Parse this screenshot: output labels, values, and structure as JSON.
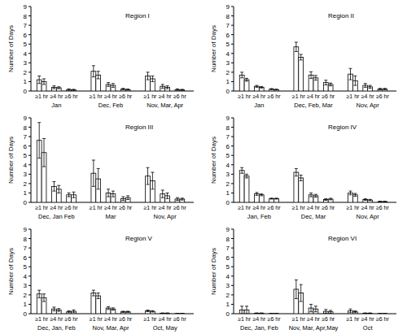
{
  "chart_data": [
    {
      "type": "bar",
      "title": "Region I",
      "y_label": "Number of Days",
      "ylim": [
        0,
        9
      ],
      "yticks": [
        0,
        1,
        2,
        3,
        4,
        5,
        6,
        7,
        8,
        9
      ],
      "categories": [
        "≥1 hr",
        "≥4 hr",
        "≥6 hr",
        "≥1 hr",
        "≥4 hr",
        "≥6 hr",
        "≥1 hr",
        "≥4 hr",
        "≥6 hr"
      ],
      "groups": [
        "Jan",
        "Dec, Feb",
        "Nov, Mar, Apr"
      ],
      "series": [
        {
          "color": "#ffffff",
          "values": [
            1.2,
            0.4,
            0.15,
            2.1,
            0.7,
            0.2,
            1.6,
            0.5,
            0.15
          ],
          "errors": [
            0.4,
            0.15,
            0.08,
            0.6,
            0.2,
            0.08,
            0.4,
            0.2,
            0.08
          ]
        },
        {
          "color": "#ffffff",
          "values": [
            1.0,
            0.35,
            0.12,
            1.7,
            0.6,
            0.15,
            1.3,
            0.4,
            0.12
          ],
          "errors": [
            0.3,
            0.1,
            0.06,
            0.4,
            0.2,
            0.06,
            0.3,
            0.15,
            0.06
          ]
        }
      ]
    },
    {
      "type": "bar",
      "title": "Region II",
      "y_label": "Number of Days",
      "ylim": [
        0,
        9
      ],
      "yticks": [
        0,
        1,
        2,
        3,
        4,
        5,
        6,
        7,
        8,
        9
      ],
      "categories": [
        "≥1 hr",
        "≥4 hr",
        "≥6 hr",
        "≥1 hr",
        "≥4 hr",
        "≥6 hr",
        "≥1 hr",
        "≥4 hr",
        "≥6 hr"
      ],
      "groups": [
        "Jan",
        "Dec, Feb, Mar",
        "Nov, Apr"
      ],
      "series": [
        {
          "color": "#ffffff",
          "values": [
            1.7,
            0.5,
            0.2,
            4.7,
            1.7,
            0.9,
            1.8,
            0.6,
            0.2
          ],
          "errors": [
            0.3,
            0.1,
            0.06,
            0.5,
            0.35,
            0.25,
            0.6,
            0.2,
            0.08
          ]
        },
        {
          "color": "#ffffff",
          "values": [
            1.2,
            0.4,
            0.15,
            3.6,
            1.4,
            0.7,
            1.1,
            0.45,
            0.2
          ],
          "errors": [
            0.15,
            0.08,
            0.05,
            0.3,
            0.25,
            0.15,
            0.5,
            0.15,
            0.08
          ]
        }
      ]
    },
    {
      "type": "bar",
      "title": "Region III",
      "y_label": "Number of Days",
      "ylim": [
        0,
        9
      ],
      "yticks": [
        0,
        1,
        2,
        3,
        4,
        5,
        6,
        7,
        8,
        9
      ],
      "categories": [
        "≥1 hr",
        "≥4 hr",
        "≥6 hr",
        "≥1 hr",
        "≥4 hr",
        "≥6 hr",
        "≥1 hr",
        "≥4 hr",
        "≥6 hr"
      ],
      "groups": [
        "Dec, Jan Feb",
        "Mar",
        "Nov, Apr"
      ],
      "series": [
        {
          "color": "#ffffff",
          "values": [
            6.6,
            1.7,
            0.8,
            3.1,
            1.0,
            0.4,
            2.8,
            0.9,
            0.35
          ],
          "errors": [
            1.9,
            0.5,
            0.2,
            1.4,
            0.4,
            0.2,
            0.9,
            0.4,
            0.15
          ]
        },
        {
          "color": "#ffffff",
          "values": [
            5.3,
            1.4,
            0.8,
            2.5,
            0.9,
            0.5,
            2.3,
            0.7,
            0.35
          ],
          "errors": [
            1.5,
            0.4,
            0.3,
            1.1,
            0.3,
            0.2,
            0.9,
            0.3,
            0.1
          ]
        }
      ]
    },
    {
      "type": "bar",
      "title": "Region IV",
      "y_label": "Number of Days",
      "ylim": [
        0,
        9
      ],
      "yticks": [
        0,
        1,
        2,
        3,
        4,
        5,
        6,
        7,
        8,
        9
      ],
      "categories": [
        "≥1 hr",
        "≥4 hr",
        "≥6 hr",
        "≥1 hr",
        "≥4 hr",
        "≥6 hr",
        "≥1 hr",
        "≥4 hr",
        "≥6 hr"
      ],
      "groups": [
        "Jan, Feb",
        "Dec, Mar",
        "Nov, Apr"
      ],
      "series": [
        {
          "color": "#ffffff",
          "values": [
            3.4,
            0.9,
            0.4,
            3.2,
            0.8,
            0.3,
            1.0,
            0.3,
            0.08
          ],
          "errors": [
            0.3,
            0.15,
            0.05,
            0.4,
            0.2,
            0.08,
            0.2,
            0.08,
            0.03
          ]
        },
        {
          "color": "#ffffff",
          "values": [
            2.8,
            0.8,
            0.4,
            2.6,
            0.7,
            0.35,
            0.8,
            0.25,
            0.08
          ],
          "errors": [
            0.2,
            0.1,
            0.05,
            0.3,
            0.15,
            0.08,
            0.15,
            0.07,
            0.03
          ]
        }
      ]
    },
    {
      "type": "bar",
      "title": "Region V",
      "y_label": "Number of Days",
      "ylim": [
        0,
        9
      ],
      "yticks": [
        0,
        1,
        2,
        3,
        4,
        5,
        6,
        7,
        8,
        9
      ],
      "categories": [
        "≥1 hr",
        "≥4 hr",
        "≥6 hr",
        "≥1 hr",
        "≥4 hr",
        "≥6 hr",
        "≥1 hr",
        "≥4 hr",
        "≥6 hr"
      ],
      "groups": [
        "Dec, Jan, Feb",
        "Nov, Mar, Apr",
        "Oct, May"
      ],
      "series": [
        {
          "color": "#ffffff",
          "values": [
            2.1,
            0.5,
            0.2,
            2.2,
            0.6,
            0.2,
            0.3,
            0.05,
            0.02
          ],
          "errors": [
            0.4,
            0.2,
            0.1,
            0.3,
            0.15,
            0.06,
            0.08,
            0.03,
            0.01
          ]
        },
        {
          "color": "#ffffff",
          "values": [
            1.7,
            0.4,
            0.25,
            1.9,
            0.5,
            0.2,
            0.25,
            0.05,
            0.02
          ],
          "errors": [
            0.4,
            0.15,
            0.15,
            0.3,
            0.12,
            0.06,
            0.07,
            0.03,
            0.01
          ]
        }
      ]
    },
    {
      "type": "bar",
      "title": "Region VI",
      "y_label": "Number of Days",
      "ylim": [
        0,
        9
      ],
      "yticks": [
        0,
        1,
        2,
        3,
        4,
        5,
        6,
        7,
        8,
        9
      ],
      "categories": [
        "≥1 hr",
        "≥4 hr",
        "≥6 hr",
        "≥1 hr",
        "≥4 hr",
        "≥6 hr",
        "≥1 hr",
        "≥4 hr",
        "≥6 hr"
      ],
      "groups": [
        "Dec, Jan, Feb",
        "Nov, Mar, Apr,May",
        "Oct"
      ],
      "series": [
        {
          "color": "#ffffff",
          "values": [
            0.4,
            0.05,
            0.02,
            2.6,
            0.6,
            0.25,
            0.3,
            0.05,
            0.02
          ],
          "errors": [
            0.4,
            0.03,
            0.01,
            1.0,
            0.4,
            0.2,
            0.2,
            0.03,
            0.01
          ]
        },
        {
          "color": "#ffffff",
          "values": [
            0.4,
            0.05,
            0.02,
            2.2,
            0.5,
            0.2,
            0.2,
            0.05,
            0.02
          ],
          "errors": [
            0.4,
            0.03,
            0.01,
            0.9,
            0.3,
            0.15,
            0.1,
            0.03,
            0.01
          ]
        }
      ]
    }
  ]
}
